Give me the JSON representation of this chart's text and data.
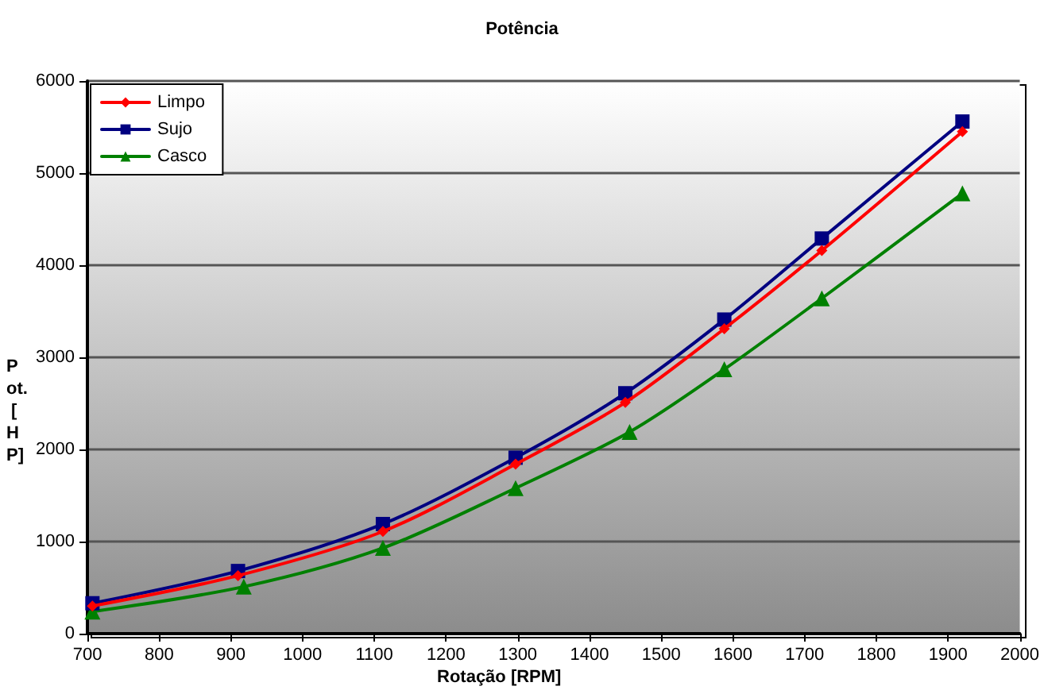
{
  "chart_data": {
    "type": "line",
    "title": "Potência",
    "xlabel": "Rotação [RPM]",
    "ylabel": "Pot. [HP]",
    "x": [
      707,
      910,
      1112,
      1297,
      1450,
      1588,
      1724,
      1920
    ],
    "series": [
      {
        "name": "Limpo",
        "color": "#ff0000",
        "marker": "diamond",
        "values": [
          300,
          630,
          1110,
          1840,
          2510,
          3310,
          4160,
          5450
        ]
      },
      {
        "name": "Sujo",
        "color": "#000080",
        "marker": "square",
        "values": [
          330,
          680,
          1190,
          1910,
          2610,
          3410,
          4290,
          5560
        ]
      },
      {
        "name": "Casco",
        "color": "#008000",
        "marker": "triangle",
        "x": [
          707,
          918,
          1112,
          1297,
          1456,
          1588,
          1724,
          1920
        ],
        "values": [
          240,
          510,
          930,
          1580,
          2190,
          2870,
          3640,
          4780
        ]
      }
    ],
    "xlim": [
      700,
      2000
    ],
    "xticks": [
      700,
      800,
      900,
      1000,
      1100,
      1200,
      1300,
      1400,
      1500,
      1600,
      1700,
      1800,
      1900,
      2000
    ],
    "ylim": [
      0,
      6000
    ],
    "yticks": [
      0,
      1000,
      2000,
      3000,
      4000,
      5000,
      6000
    ],
    "grid": "y",
    "legend": "top left",
    "line_style": "solid"
  }
}
